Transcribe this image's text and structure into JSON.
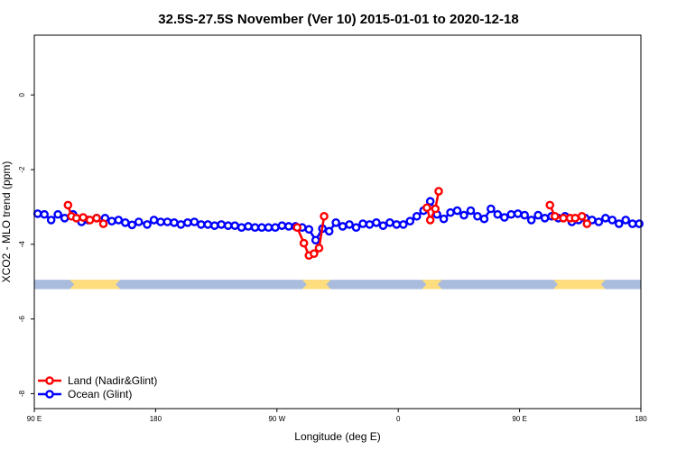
{
  "chart_data": {
    "type": "line",
    "title": "32.5S-27.5S November (Ver 10)   2015-01-01 to 2020-12-18",
    "xlabel": "Longitude (deg E)",
    "ylabel": "XCO2 - MLO trend (ppm)",
    "xlim": [
      90,
      450
    ],
    "ylim": [
      -8.4,
      1.6
    ],
    "x_ticks": [
      {
        "value": 90,
        "label": "90 E"
      },
      {
        "value": 162,
        "label": "180"
      },
      {
        "value": 234,
        "label": "90 W"
      },
      {
        "value": 306,
        "label": "0"
      },
      {
        "value": 378,
        "label": "90 E"
      },
      {
        "value": 450,
        "label": "180"
      }
    ],
    "y_ticks": [
      {
        "value": 0,
        "label": "0"
      },
      {
        "value": -2,
        "label": "-2"
      },
      {
        "value": -4,
        "label": "-4"
      },
      {
        "value": -6,
        "label": "-6"
      },
      {
        "value": -8,
        "label": "-8"
      }
    ],
    "land_strip": {
      "y_range": [
        -5.2,
        -4.95
      ],
      "ocean_color": "#a9bcdd",
      "land_color": "#fedd7f",
      "land_segments": [
        [
          111,
          141
        ],
        [
          249,
          266
        ],
        [
          320,
          332
        ],
        [
          398,
          429
        ]
      ]
    },
    "series": [
      {
        "name": "Land (Nadir&Glint)",
        "color": "#ff0000",
        "segments": [
          {
            "x": [
              110,
              112,
              115,
              119,
              123,
              127,
              131
            ],
            "y": [
              -2.95,
              -3.25,
              -3.3,
              -3.28,
              -3.35,
              -3.3,
              -3.45
            ]
          },
          {
            "x": [
              246,
              250,
              253,
              256,
              259,
              262
            ],
            "y": [
              -3.55,
              -3.97,
              -4.3,
              -4.25,
              -4.1,
              -3.25
            ]
          },
          {
            "x": [
              323,
              325,
              328,
              330
            ],
            "y": [
              -3.02,
              -3.35,
              -3.05,
              -2.58
            ]
          },
          {
            "x": [
              396,
              399,
              404,
              408,
              411,
              415,
              418
            ],
            "y": [
              -2.95,
              -3.25,
              -3.3,
              -3.3,
              -3.3,
              -3.25,
              -3.45
            ]
          }
        ]
      },
      {
        "name": "Ocean (Glint)",
        "color": "#0000ff",
        "segments": [
          {
            "x": [
              92,
              96,
              100,
              104,
              108,
              113,
              118,
              122,
              127,
              132,
              136,
              140,
              144,
              148,
              152,
              157,
              161,
              165,
              169,
              173,
              177,
              181,
              185,
              189,
              193,
              197,
              201,
              205,
              209,
              213,
              217,
              221,
              225,
              229,
              233,
              237,
              241,
              245,
              249,
              253,
              257,
              261,
              265,
              269,
              273,
              277,
              281,
              285,
              289,
              293,
              297,
              301,
              305,
              309,
              313,
              317,
              321,
              325,
              329,
              333,
              337,
              341,
              345,
              349,
              353,
              357,
              361,
              365,
              369,
              373,
              377,
              381,
              385,
              389,
              393,
              397,
              401,
              405,
              409,
              413,
              417,
              421,
              425,
              429,
              433,
              437,
              441,
              445,
              449
            ],
            "y": [
              -3.18,
              -3.2,
              -3.35,
              -3.2,
              -3.3,
              -3.2,
              -3.4,
              -3.35,
              -3.3,
              -3.3,
              -3.38,
              -3.35,
              -3.42,
              -3.48,
              -3.4,
              -3.47,
              -3.35,
              -3.4,
              -3.4,
              -3.42,
              -3.47,
              -3.42,
              -3.4,
              -3.47,
              -3.47,
              -3.5,
              -3.47,
              -3.5,
              -3.5,
              -3.55,
              -3.52,
              -3.55,
              -3.55,
              -3.55,
              -3.55,
              -3.5,
              -3.52,
              -3.52,
              -3.55,
              -3.6,
              -3.89,
              -3.58,
              -3.65,
              -3.42,
              -3.52,
              -3.47,
              -3.55,
              -3.45,
              -3.47,
              -3.42,
              -3.5,
              -3.42,
              -3.47,
              -3.47,
              -3.38,
              -3.25,
              -3.1,
              -2.85,
              -3.2,
              -3.32,
              -3.15,
              -3.1,
              -3.22,
              -3.1,
              -3.25,
              -3.32,
              -3.05,
              -3.2,
              -3.28,
              -3.2,
              -3.18,
              -3.22,
              -3.35,
              -3.22,
              -3.3,
              -3.25,
              -3.3,
              -3.25,
              -3.4,
              -3.35,
              -3.3,
              -3.35,
              -3.4,
              -3.3,
              -3.35,
              -3.45,
              -3.35,
              -3.45,
              -3.45
            ]
          }
        ]
      }
    ],
    "legend": {
      "position": "bottom-left",
      "entries": [
        {
          "label": "Land (Nadir&Glint)",
          "color": "#ff0000"
        },
        {
          "label": "Ocean (Glint)",
          "color": "#0000ff"
        }
      ]
    },
    "grid": false
  }
}
